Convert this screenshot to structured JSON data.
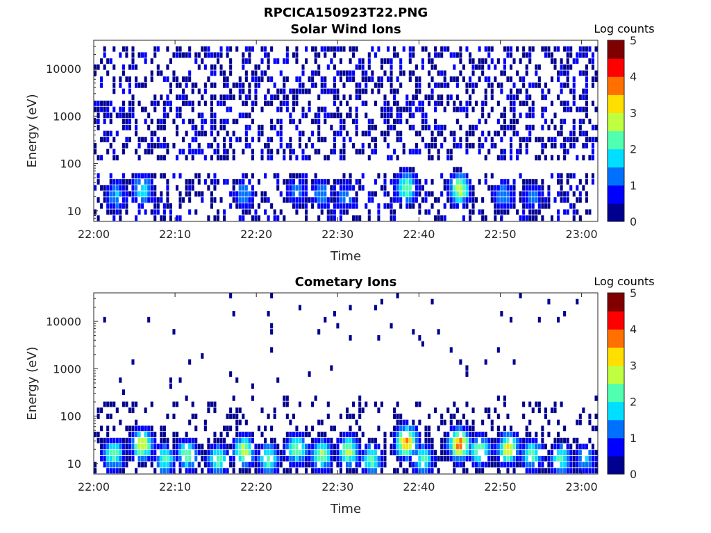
{
  "figure_title": "RPCICA150923T22.PNG",
  "colormap": [
    "#00008f",
    "#0000ff",
    "#0070ff",
    "#00dfff",
    "#50ffaf",
    "#bfff40",
    "#ffdf00",
    "#ff7000",
    "#ff0000",
    "#800000"
  ],
  "chart_data": [
    {
      "type": "heatmap",
      "title": "Solar Wind Ions",
      "xlabel": "Time",
      "ylabel": "Energy (eV)",
      "x_ticks": [
        "22:00",
        "22:10",
        "22:20",
        "22:30",
        "22:40",
        "22:50",
        "23:00"
      ],
      "x_range_minutes_after_22_00": [
        0,
        62
      ],
      "y_scale": "log",
      "y_ticks": [
        "10",
        "100",
        "1000",
        "10000"
      ],
      "y_range": [
        6,
        40000
      ],
      "colorbar": {
        "label": "Log counts",
        "ticks": [
          "0",
          "1",
          "2",
          "3",
          "4",
          "5"
        ],
        "range": [
          0,
          5
        ]
      },
      "background_counts_log": {
        "energy_range_eV": [
          100,
          30000
        ],
        "level": 0.3
      },
      "bursts": [
        {
          "t_min": 2.8,
          "energy_eV": 20,
          "log_counts": 1.6
        },
        {
          "t_min": 6.0,
          "energy_eV": 28,
          "log_counts": 2.0
        },
        {
          "t_min": 18.5,
          "energy_eV": 22,
          "log_counts": 1.4
        },
        {
          "t_min": 25.0,
          "energy_eV": 25,
          "log_counts": 1.3
        },
        {
          "t_min": 28.0,
          "energy_eV": 22,
          "log_counts": 1.5
        },
        {
          "t_min": 31.0,
          "energy_eV": 20,
          "log_counts": 1.4
        },
        {
          "t_min": 38.5,
          "energy_eV": 30,
          "log_counts": 2.5
        },
        {
          "t_min": 45.0,
          "energy_eV": 28,
          "log_counts": 2.8
        },
        {
          "t_min": 50.5,
          "energy_eV": 20,
          "log_counts": 1.5
        },
        {
          "t_min": 54.0,
          "energy_eV": 20,
          "log_counts": 1.3
        }
      ]
    },
    {
      "type": "heatmap",
      "title": "Cometary Ions",
      "xlabel": "Time",
      "ylabel": "Energy (eV)",
      "x_ticks": [
        "22:00",
        "22:10",
        "22:20",
        "22:30",
        "22:40",
        "22:50",
        "23:00"
      ],
      "x_range_minutes_after_22_00": [
        0,
        62
      ],
      "y_scale": "log",
      "y_ticks": [
        "10",
        "100",
        "1000",
        "10000"
      ],
      "y_range": [
        6,
        40000
      ],
      "colorbar": {
        "label": "Log counts",
        "ticks": [
          "0",
          "1",
          "2",
          "3",
          "4",
          "5"
        ],
        "range": [
          0,
          5
        ]
      },
      "background_counts_log": {
        "energy_range_eV": [
          40,
          200
        ],
        "level": 0.2
      },
      "bursts": [
        {
          "t_min": 2.5,
          "energy_eV": 15,
          "log_counts": 2.3
        },
        {
          "t_min": 6.0,
          "energy_eV": 25,
          "log_counts": 3.0
        },
        {
          "t_min": 8.8,
          "energy_eV": 12,
          "log_counts": 2.2
        },
        {
          "t_min": 11.5,
          "energy_eV": 15,
          "log_counts": 2.4
        },
        {
          "t_min": 15.3,
          "energy_eV": 12,
          "log_counts": 2.3
        },
        {
          "t_min": 18.5,
          "energy_eV": 18,
          "log_counts": 2.8
        },
        {
          "t_min": 21.5,
          "energy_eV": 12,
          "log_counts": 2.4
        },
        {
          "t_min": 25.0,
          "energy_eV": 20,
          "log_counts": 2.5
        },
        {
          "t_min": 28.0,
          "energy_eV": 15,
          "log_counts": 2.6
        },
        {
          "t_min": 31.3,
          "energy_eV": 18,
          "log_counts": 2.7
        },
        {
          "t_min": 34.2,
          "energy_eV": 12,
          "log_counts": 2.3
        },
        {
          "t_min": 38.5,
          "energy_eV": 28,
          "log_counts": 3.6
        },
        {
          "t_min": 40.5,
          "energy_eV": 12,
          "log_counts": 2.2
        },
        {
          "t_min": 45.0,
          "energy_eV": 25,
          "log_counts": 3.8
        },
        {
          "t_min": 47.5,
          "energy_eV": 18,
          "log_counts": 2.5
        },
        {
          "t_min": 51.0,
          "energy_eV": 20,
          "log_counts": 3.1
        },
        {
          "t_min": 54.0,
          "energy_eV": 15,
          "log_counts": 2.3
        },
        {
          "t_min": 57.5,
          "energy_eV": 12,
          "log_counts": 2.2
        },
        {
          "t_min": 60.5,
          "energy_eV": 12,
          "log_counts": 1.6
        }
      ]
    }
  ]
}
